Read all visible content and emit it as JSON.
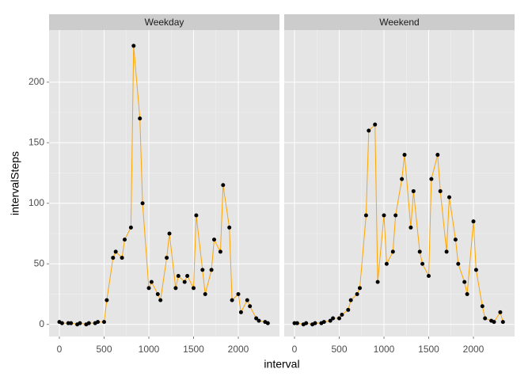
{
  "chart_data": [
    {
      "type": "line",
      "title": "Weekday",
      "x_label": "interval",
      "y_label": "intervalSteps",
      "x": [
        0,
        30,
        100,
        130,
        200,
        230,
        300,
        330,
        400,
        430,
        500,
        530,
        600,
        630,
        700,
        730,
        800,
        830,
        900,
        930,
        1000,
        1030,
        1100,
        1130,
        1200,
        1230,
        1300,
        1330,
        1400,
        1430,
        1500,
        1530,
        1600,
        1630,
        1700,
        1730,
        1800,
        1830,
        1900,
        1930,
        2000,
        2030,
        2100,
        2130,
        2200,
        2230,
        2300,
        2330
      ],
      "values": [
        2,
        1,
        1,
        1,
        0,
        1,
        0,
        1,
        1,
        2,
        2,
        20,
        55,
        60,
        55,
        70,
        80,
        230,
        170,
        100,
        30,
        35,
        25,
        20,
        55,
        75,
        30,
        40,
        35,
        40,
        30,
        90,
        45,
        25,
        45,
        70,
        60,
        115,
        80,
        20,
        25,
        10,
        20,
        15,
        5,
        3,
        2,
        1
      ],
      "line_color": "#ffa500",
      "point_color": "#000000",
      "xlim": [
        -115,
        2460
      ],
      "ylim": [
        -10,
        243
      ],
      "xticks": [
        0,
        500,
        1000,
        1500,
        2000
      ],
      "yticks": [
        0,
        50,
        100,
        150,
        200
      ],
      "grid": true
    },
    {
      "type": "line",
      "title": "Weekend",
      "x": [
        0,
        30,
        100,
        130,
        200,
        230,
        300,
        330,
        400,
        430,
        500,
        530,
        600,
        630,
        700,
        730,
        800,
        830,
        900,
        930,
        1000,
        1030,
        1100,
        1130,
        1200,
        1230,
        1300,
        1330,
        1400,
        1430,
        1500,
        1530,
        1600,
        1630,
        1700,
        1730,
        1800,
        1830,
        1900,
        1930,
        2000,
        2030,
        2100,
        2130,
        2200,
        2230,
        2300,
        2330
      ],
      "values": [
        1,
        1,
        0,
        1,
        0,
        1,
        1,
        2,
        3,
        5,
        5,
        8,
        12,
        20,
        25,
        30,
        90,
        160,
        165,
        35,
        90,
        50,
        60,
        90,
        120,
        140,
        80,
        110,
        60,
        50,
        40,
        120,
        140,
        110,
        60,
        105,
        70,
        50,
        35,
        25,
        85,
        45,
        15,
        5,
        3,
        2,
        10,
        2
      ],
      "line_color": "#ffa500",
      "point_color": "#000000",
      "xlim": [
        -115,
        2460
      ],
      "ylim": [
        -10,
        243
      ],
      "xticks": [
        0,
        500,
        1000,
        1500,
        2000
      ],
      "grid": true
    }
  ]
}
